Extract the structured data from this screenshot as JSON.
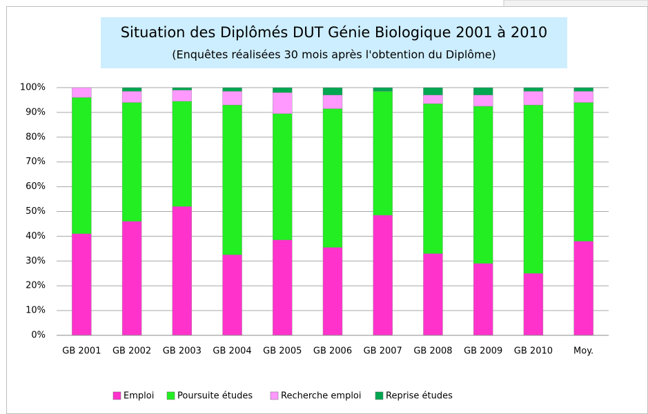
{
  "chart_data": {
    "type": "stacked_bar",
    "title": "Situation des Diplômés DUT Génie Biologique 2001 à 2010",
    "subtitle": "(Enquêtes réalisées 30 mois après l'obtention du Diplôme)",
    "categories": [
      "GB 2001",
      "GB 2002",
      "GB 2003",
      "GB 2004",
      "GB 2005",
      "GB 2006",
      "GB 2007",
      "GB 2008",
      "GB 2009",
      "GB 2010",
      "Moy."
    ],
    "series": [
      {
        "name": "Emploi",
        "color": "#ff33cc",
        "values": [
          41,
          46,
          52,
          32.5,
          38.5,
          35.5,
          48.5,
          33,
          29,
          25,
          38
        ]
      },
      {
        "name": "Poursuite études",
        "color": "#22ee22",
        "values": [
          55,
          48,
          42.5,
          60.5,
          51,
          56,
          50,
          60.5,
          63.5,
          68,
          56
        ]
      },
      {
        "name": "Recherche emploi",
        "color": "#ff99ff",
        "values": [
          4,
          4.5,
          4.5,
          5.5,
          8.5,
          5.5,
          0,
          3.5,
          4.5,
          5.5,
          4.5
        ]
      },
      {
        "name": "Reprise études",
        "color": "#00a650",
        "values": [
          0,
          1.5,
          1,
          1.5,
          2,
          3,
          1.5,
          3,
          3,
          1.5,
          1.5
        ]
      }
    ],
    "ylim": [
      0,
      100
    ],
    "yticks": [
      {
        "value": 0,
        "label": "0%"
      },
      {
        "value": 10,
        "label": "10%"
      },
      {
        "value": 20,
        "label": "20%"
      },
      {
        "value": 30,
        "label": "30%"
      },
      {
        "value": 40,
        "label": "40%"
      },
      {
        "value": 50,
        "label": "50%"
      },
      {
        "value": 60,
        "label": "60%"
      },
      {
        "value": 70,
        "label": "70%"
      },
      {
        "value": 80,
        "label": "80%"
      },
      {
        "value": 90,
        "label": "90%"
      },
      {
        "value": 100,
        "label": "100%"
      }
    ],
    "grid": true,
    "legend": "bottom"
  }
}
